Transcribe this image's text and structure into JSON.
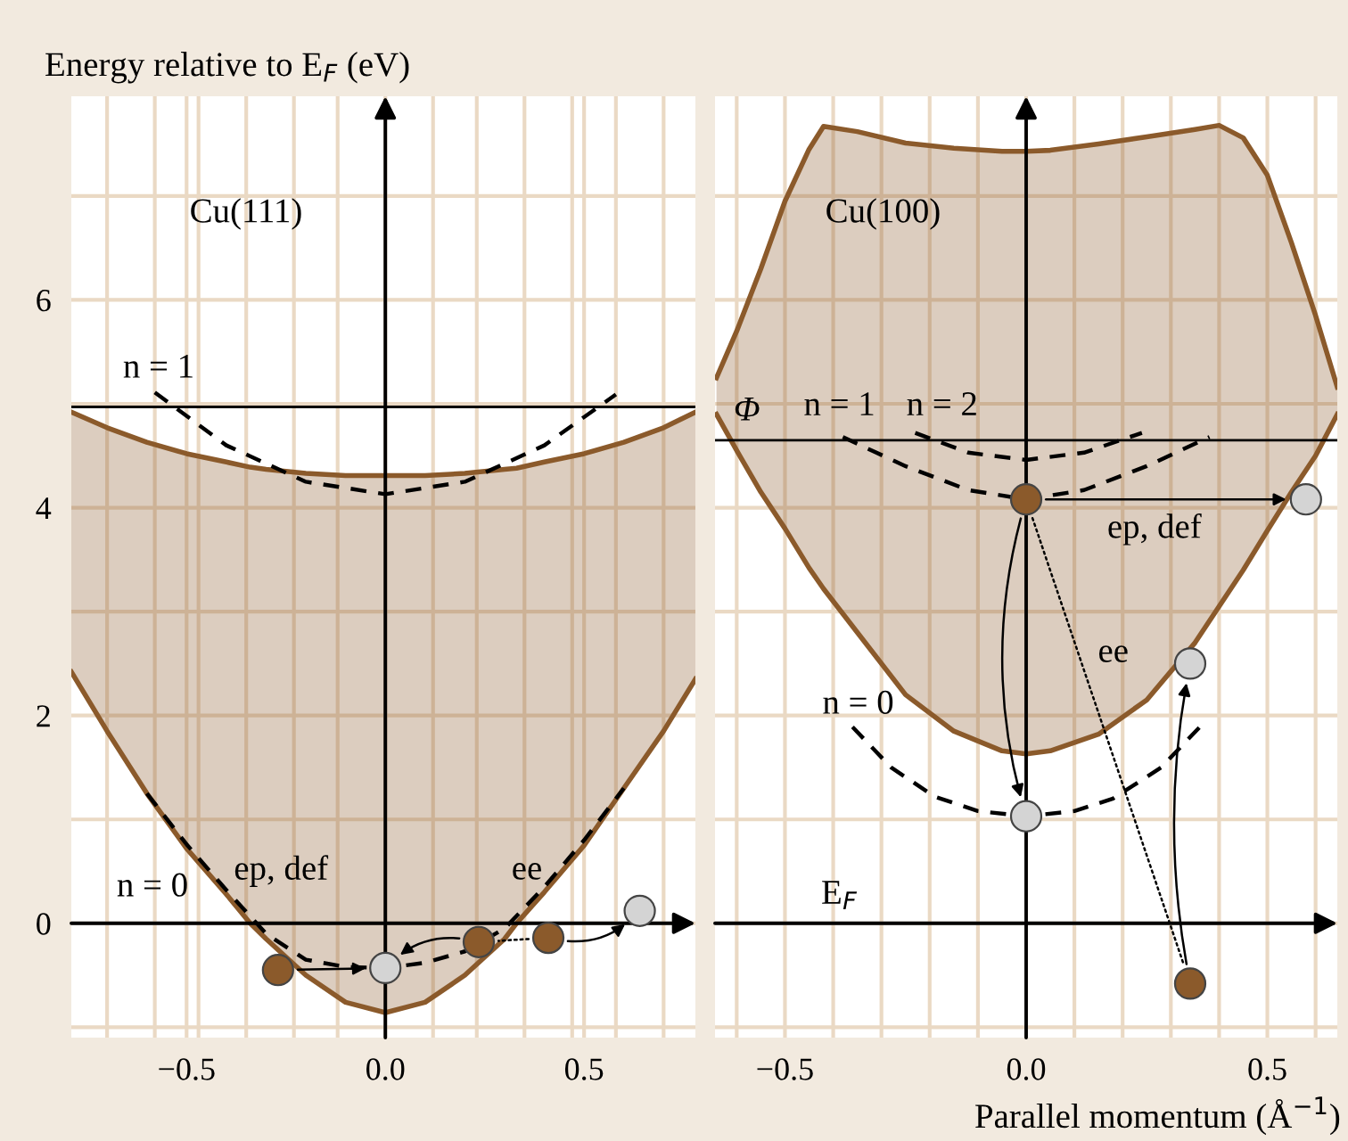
{
  "chart_data": [
    {
      "type": "line",
      "ylabel": "Energy relative to E$_{F}$ (eV)",
      "xlim": [
        -0.79,
        0.78
      ],
      "ylim": [
        -1.1,
        7.96
      ],
      "xticks": [
        {
          "value": -0.7,
          "label": null
        },
        {
          "value": -0.58,
          "label": null
        },
        {
          "value": -0.5,
          "label": "−0.5"
        },
        {
          "value": -0.47,
          "label": null
        },
        {
          "value": -0.35,
          "label": null
        },
        {
          "value": -0.23,
          "label": null
        },
        {
          "value": -0.12,
          "label": null
        },
        {
          "value": 0,
          "label": "0.0"
        },
        {
          "value": 0.12,
          "label": null
        },
        {
          "value": 0.23,
          "label": null
        },
        {
          "value": 0.35,
          "label": null
        },
        {
          "value": 0.47,
          "label": null
        },
        {
          "value": 0.5,
          "label": "0.5"
        },
        {
          "value": 0.58,
          "label": null
        },
        {
          "value": 0.7,
          "label": null
        }
      ],
      "yticks": [
        {
          "value": -1,
          "label": null
        },
        0,
        {
          "value": 1,
          "label": null
        },
        2,
        {
          "value": 3,
          "label": null
        },
        4,
        {
          "value": 5,
          "label": null
        },
        6,
        {
          "value": 7,
          "label": null
        }
      ],
      "grid": true,
      "ref_lines": [
        {
          "axis": "y",
          "value": 4.97,
          "color": "#000000"
        }
      ],
      "annotations": [
        "Cu(111)",
        "n = 1",
        "n = 0",
        "ep, def",
        "ee"
      ],
      "series": [
        {
          "color": "#8b5a2b",
          "x": [
            -0.79,
            -0.7,
            -0.6,
            -0.5,
            -0.4,
            -0.34,
            -0.3,
            -0.2,
            -0.1,
            0,
            0.1,
            0.2,
            0.3,
            0.33,
            0.4,
            0.5,
            0.6,
            0.7,
            0.78
          ],
          "values": [
            4.92,
            4.77,
            4.63,
            4.52,
            4.44,
            4.39,
            4.37,
            4.33,
            4.31,
            4.31,
            4.31,
            4.33,
            4.37,
            4.38,
            4.44,
            4.52,
            4.63,
            4.77,
            4.92
          ],
          "upper": [
            4.92,
            4.77,
            4.63,
            4.52,
            4.44,
            4.39,
            4.37,
            4.33,
            4.31,
            4.31,
            4.31,
            4.33,
            4.37,
            4.38,
            4.44,
            4.52,
            4.63,
            4.77,
            4.92
          ],
          "lower": [
            2.42,
            1.85,
            1.25,
            0.72,
            0.28,
            0,
            -0.15,
            -0.5,
            -0.76,
            -0.86,
            -0.76,
            -0.5,
            -0.15,
            0,
            0.3,
            0.75,
            1.3,
            1.85,
            2.35
          ]
        },
        {
          "color": "#8b5a2b",
          "x": [
            -0.79,
            -0.7,
            -0.6,
            -0.5,
            -0.4,
            -0.34,
            -0.3,
            -0.2,
            -0.1,
            0,
            0.1,
            0.2,
            0.3,
            0.33,
            0.4,
            0.5,
            0.6,
            0.7,
            0.78
          ],
          "values": [
            2.42,
            1.85,
            1.25,
            0.72,
            0.28,
            0,
            -0.15,
            -0.5,
            -0.76,
            -0.86,
            -0.76,
            -0.5,
            -0.15,
            0,
            0.3,
            0.75,
            1.3,
            1.85,
            2.35
          ]
        },
        {
          "line_style": "dashed",
          "color": "#000000",
          "x": [
            -0.58,
            -0.4,
            -0.2,
            0,
            0.2,
            0.4,
            0.58
          ],
          "values": [
            5.11,
            4.6,
            4.25,
            4.13,
            4.25,
            4.6,
            5.09
          ]
        },
        {
          "line_style": "dashed",
          "color": "#000000",
          "x": [
            -0.6,
            -0.5,
            -0.4,
            -0.3,
            -0.2,
            -0.1,
            0,
            0.1,
            0.2,
            0.3,
            0.4,
            0.5,
            0.6
          ],
          "values": [
            1.25,
            0.76,
            0.32,
            -0.1,
            -0.35,
            -0.42,
            -0.43,
            -0.38,
            -0.27,
            -0.05,
            0.35,
            0.8,
            1.3
          ]
        },
        {
          "type": "scatter",
          "marker": "circle",
          "x": [
            -0.27,
            0,
            0.235,
            0.41,
            0.64
          ],
          "values": [
            -0.45,
            -0.43,
            -0.18,
            -0.14,
            0.12
          ],
          "colors": [
            "#8b5a2b",
            "#d4d4d4",
            "#8b5a2b",
            "#8b5a2b",
            "#d4d4d4"
          ]
        }
      ]
    },
    {
      "type": "line",
      "xlabel": "Parallel momentum (Å$^{−1}$)",
      "xlim": [
        -0.645,
        0.645
      ],
      "ylim": [
        -1.1,
        7.96
      ],
      "tick_labels": "x",
      "xticks": [
        {
          "value": -0.6,
          "label": null
        },
        {
          "value": -0.5,
          "label": "−0.5"
        },
        {
          "value": -0.4,
          "label": null
        },
        {
          "value": -0.3,
          "label": null
        },
        {
          "value": -0.2,
          "label": null
        },
        {
          "value": -0.1,
          "label": null
        },
        {
          "value": 0,
          "label": "0.0"
        },
        {
          "value": 0.1,
          "label": null
        },
        {
          "value": 0.2,
          "label": null
        },
        {
          "value": 0.3,
          "label": null
        },
        {
          "value": 0.4,
          "label": null
        },
        {
          "value": 0.5,
          "label": "0.5"
        },
        {
          "value": 0.6,
          "label": null
        }
      ],
      "yticks": [
        {
          "value": -1,
          "label": null
        },
        {
          "value": 0,
          "label": null
        },
        {
          "value": 1,
          "label": null
        },
        {
          "value": 2,
          "label": null
        },
        {
          "value": 3,
          "label": null
        },
        {
          "value": 4,
          "label": null
        },
        {
          "value": 5,
          "label": null
        },
        {
          "value": 6,
          "label": null
        },
        {
          "value": 7,
          "label": null
        }
      ],
      "grid": true,
      "ref_lines": [
        {
          "axis": "y",
          "value": 4.65,
          "label": "Φ",
          "color": "#000000"
        }
      ],
      "annotations": [
        "Cu(100)",
        "n = 1",
        "n = 2",
        "ep, def",
        "ee",
        "n = 0",
        "E$_{F}$"
      ],
      "series": [
        {
          "color": "#8b5a2b",
          "x": [
            -0.642,
            -0.6,
            -0.55,
            -0.5,
            -0.45,
            -0.42,
            -0.35,
            -0.25,
            -0.15,
            -0.05,
            0,
            0.05,
            0.15,
            0.25,
            0.35,
            0.4,
            0.45,
            0.5,
            0.55,
            0.6,
            0.645
          ],
          "values": [
            5.25,
            5.7,
            6.3,
            6.95,
            7.45,
            7.67,
            7.62,
            7.51,
            7.46,
            7.43,
            7.43,
            7.44,
            7.5,
            7.57,
            7.64,
            7.68,
            7.56,
            7.2,
            6.55,
            5.85,
            5.16
          ],
          "upper": [
            5.25,
            5.7,
            6.3,
            6.95,
            7.45,
            7.67,
            7.62,
            7.51,
            7.46,
            7.43,
            7.43,
            7.44,
            7.5,
            7.57,
            7.64,
            7.68,
            7.56,
            7.2,
            6.55,
            5.85,
            5.16
          ],
          "lower": [
            4.9,
            4.55,
            4.15,
            3.8,
            3.42,
            3.22,
            2.8,
            2.2,
            1.85,
            1.66,
            1.63,
            1.66,
            1.82,
            2.15,
            2.7,
            3.05,
            3.4,
            3.78,
            4.15,
            4.5,
            4.9
          ]
        },
        {
          "color": "#8b5a2b",
          "x": [
            -0.642,
            -0.6,
            -0.55,
            -0.5,
            -0.45,
            -0.42,
            -0.35,
            -0.25,
            -0.15,
            -0.05,
            0,
            0.05,
            0.15,
            0.25,
            0.35,
            0.4,
            0.45,
            0.5,
            0.55,
            0.6,
            0.645
          ],
          "values": [
            4.9,
            4.55,
            4.15,
            3.8,
            3.42,
            3.22,
            2.8,
            2.2,
            1.85,
            1.66,
            1.63,
            1.66,
            1.82,
            2.15,
            2.7,
            3.05,
            3.4,
            3.78,
            4.15,
            4.5,
            4.9
          ]
        },
        {
          "line_style": "dashed",
          "color": "#000000",
          "x": [
            -0.38,
            -0.25,
            -0.12,
            0,
            0.12,
            0.25,
            0.38
          ],
          "values": [
            4.68,
            4.4,
            4.17,
            4.08,
            4.17,
            4.4,
            4.68
          ]
        },
        {
          "line_style": "dashed",
          "color": "#000000",
          "x": [
            -0.23,
            -0.12,
            0,
            0.12,
            0.24
          ],
          "values": [
            4.72,
            4.53,
            4.46,
            4.53,
            4.72
          ]
        },
        {
          "line_style": "dashed",
          "color": "#000000",
          "x": [
            -0.36,
            -0.28,
            -0.19,
            -0.1,
            0,
            0.1,
            0.18,
            0.28,
            0.36
          ],
          "values": [
            1.89,
            1.5,
            1.22,
            1.08,
            1.03,
            1.08,
            1.2,
            1.5,
            1.89
          ]
        },
        {
          "type": "scatter",
          "marker": "circle",
          "x": [
            0,
            0.58,
            0,
            0.34,
            0.34
          ],
          "values": [
            4.08,
            4.08,
            1.03,
            2.5,
            -0.58
          ],
          "colors": [
            "#8b5a2b",
            "#d4d4d4",
            "#d4d4d4",
            "#d4d4d4",
            "#8b5a2b"
          ]
        }
      ]
    }
  ]
}
